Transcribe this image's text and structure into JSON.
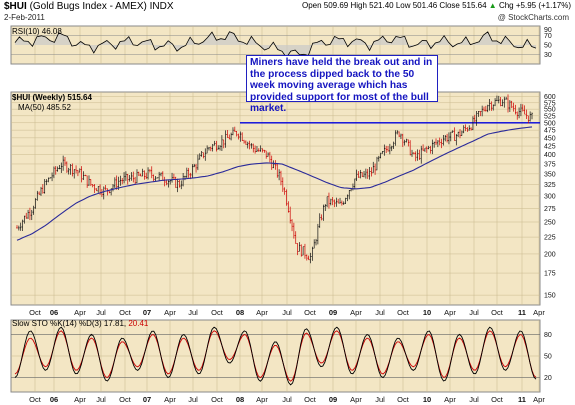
{
  "header": {
    "symbol": "$HUI",
    "name": " (Gold Bugs Index - AMEX) INDX",
    "date": "2-Feb-2011",
    "ohlc": "Open 509.69  High 521.40  Low 501.46  Close 515.64",
    "change": "Chg +5.95 (+1.17%)",
    "change_arrow": "▲",
    "credit": "@ StockCharts.com"
  },
  "annotation": "Miners have held the break out and in the process dipped back to the 50 week moving average which has provided support for most of the bull market.",
  "chart_data": [
    {
      "type": "line",
      "panel": "rsi",
      "legend": "RSI(10) 46.08",
      "ylim": [
        10,
        90
      ],
      "yticks": [
        10,
        30,
        50,
        70,
        90
      ],
      "guide_lines": [
        30,
        70
      ],
      "x": [
        "2005-10",
        "2006-01",
        "2006-04",
        "2006-07",
        "2006-10",
        "2007-01",
        "2007-04",
        "2007-07",
        "2007-10",
        "2008-01",
        "2008-04",
        "2008-07",
        "2008-10",
        "2009-01",
        "2009-04",
        "2009-07",
        "2009-10",
        "2010-01",
        "2010-04",
        "2010-07",
        "2010-10",
        "2011-01",
        "2011-02"
      ],
      "series": [
        {
          "name": "RSI(10)",
          "values": [
            55,
            62,
            68,
            45,
            52,
            58,
            50,
            47,
            62,
            70,
            55,
            42,
            28,
            58,
            60,
            52,
            66,
            50,
            58,
            53,
            68,
            52,
            46
          ]
        }
      ],
      "colors": {
        "line": "#000000",
        "area": "#c9c9c9"
      }
    },
    {
      "type": "line",
      "panel": "price",
      "legend_main": "$HUI (Weekly) 515.64",
      "legend_ma": "MA(50) 485.52",
      "ylim": [
        140,
        620
      ],
      "yticks": [
        150,
        175,
        200,
        225,
        250,
        275,
        300,
        325,
        350,
        375,
        400,
        425,
        450,
        475,
        500,
        525,
        550,
        575,
        600
      ],
      "scale": "log",
      "x": [
        "2005-09",
        "2005-11",
        "2006-01",
        "2006-03",
        "2006-05",
        "2006-07",
        "2006-09",
        "2006-11",
        "2007-01",
        "2007-03",
        "2007-05",
        "2007-07",
        "2007-09",
        "2007-11",
        "2008-01",
        "2008-03",
        "2008-05",
        "2008-07",
        "2008-09",
        "2008-10",
        "2008-11",
        "2009-01",
        "2009-03",
        "2009-05",
        "2009-07",
        "2009-09",
        "2009-11",
        "2010-01",
        "2010-03",
        "2010-05",
        "2010-07",
        "2010-09",
        "2010-11",
        "2010-12",
        "2011-01",
        "2011-02"
      ],
      "series": [
        {
          "name": "$HUI",
          "values": [
            240,
            275,
            330,
            375,
            360,
            325,
            310,
            335,
            340,
            350,
            340,
            325,
            365,
            420,
            440,
            470,
            420,
            400,
            330,
            210,
            195,
            290,
            280,
            340,
            350,
            410,
            470,
            390,
            420,
            450,
            460,
            500,
            570,
            585,
            545,
            516
          ]
        },
        {
          "name": "MA(50)",
          "values": [
            220,
            230,
            245,
            265,
            285,
            300,
            310,
            318,
            325,
            330,
            335,
            337,
            340,
            345,
            355,
            368,
            375,
            378,
            375,
            360,
            345,
            330,
            318,
            315,
            318,
            330,
            345,
            360,
            380,
            400,
            420,
            440,
            462,
            472,
            480,
            486
          ]
        }
      ],
      "breakout_level": 500,
      "xticks": [
        "Oct",
        "06",
        "Apr",
        "Jul",
        "Oct",
        "07",
        "Apr",
        "Jul",
        "Oct",
        "08",
        "Apr",
        "Jul",
        "Oct",
        "09",
        "Apr",
        "Jul",
        "Oct",
        "10",
        "Apr",
        "Jul",
        "Oct",
        "11",
        "Apr"
      ],
      "colors": {
        "price": "#cc0000",
        "ma": "#2a2a9a",
        "breakout": "#0000dd"
      }
    },
    {
      "type": "line",
      "panel": "stochastic",
      "legend": "Slow STO %K(14) %D(3) 17.81, 20.41",
      "legend_main": "Slow STO %K(14) %D(3) 17.81,",
      "legend_d": "20.41",
      "ylim": [
        0,
        100
      ],
      "yticks": [
        20,
        50,
        80
      ],
      "guide_lines": [
        20,
        80
      ],
      "series": [
        {
          "name": "%K(14)",
          "values": [
            20,
            85,
            30,
            90,
            25,
            80,
            15,
            75,
            30,
            85,
            20,
            80,
            25,
            90,
            40,
            85,
            15,
            70,
            10,
            88,
            35,
            90,
            25,
            80,
            20,
            75,
            30,
            85,
            15,
            80,
            25,
            90,
            30,
            85,
            17.81
          ]
        },
        {
          "name": "%D(3)",
          "values": [
            25,
            75,
            35,
            85,
            30,
            75,
            20,
            70,
            35,
            80,
            25,
            75,
            30,
            85,
            45,
            80,
            20,
            65,
            15,
            82,
            40,
            85,
            30,
            75,
            25,
            70,
            35,
            80,
            20,
            75,
            30,
            85,
            35,
            80,
            20.41
          ]
        }
      ],
      "colors": {
        "k": "#000000",
        "d": "#cc0000"
      }
    }
  ],
  "colors": {
    "panel_bg": "#f3e6c4",
    "grid": "#c9b98e",
    "frame": "#8a8a8a"
  }
}
